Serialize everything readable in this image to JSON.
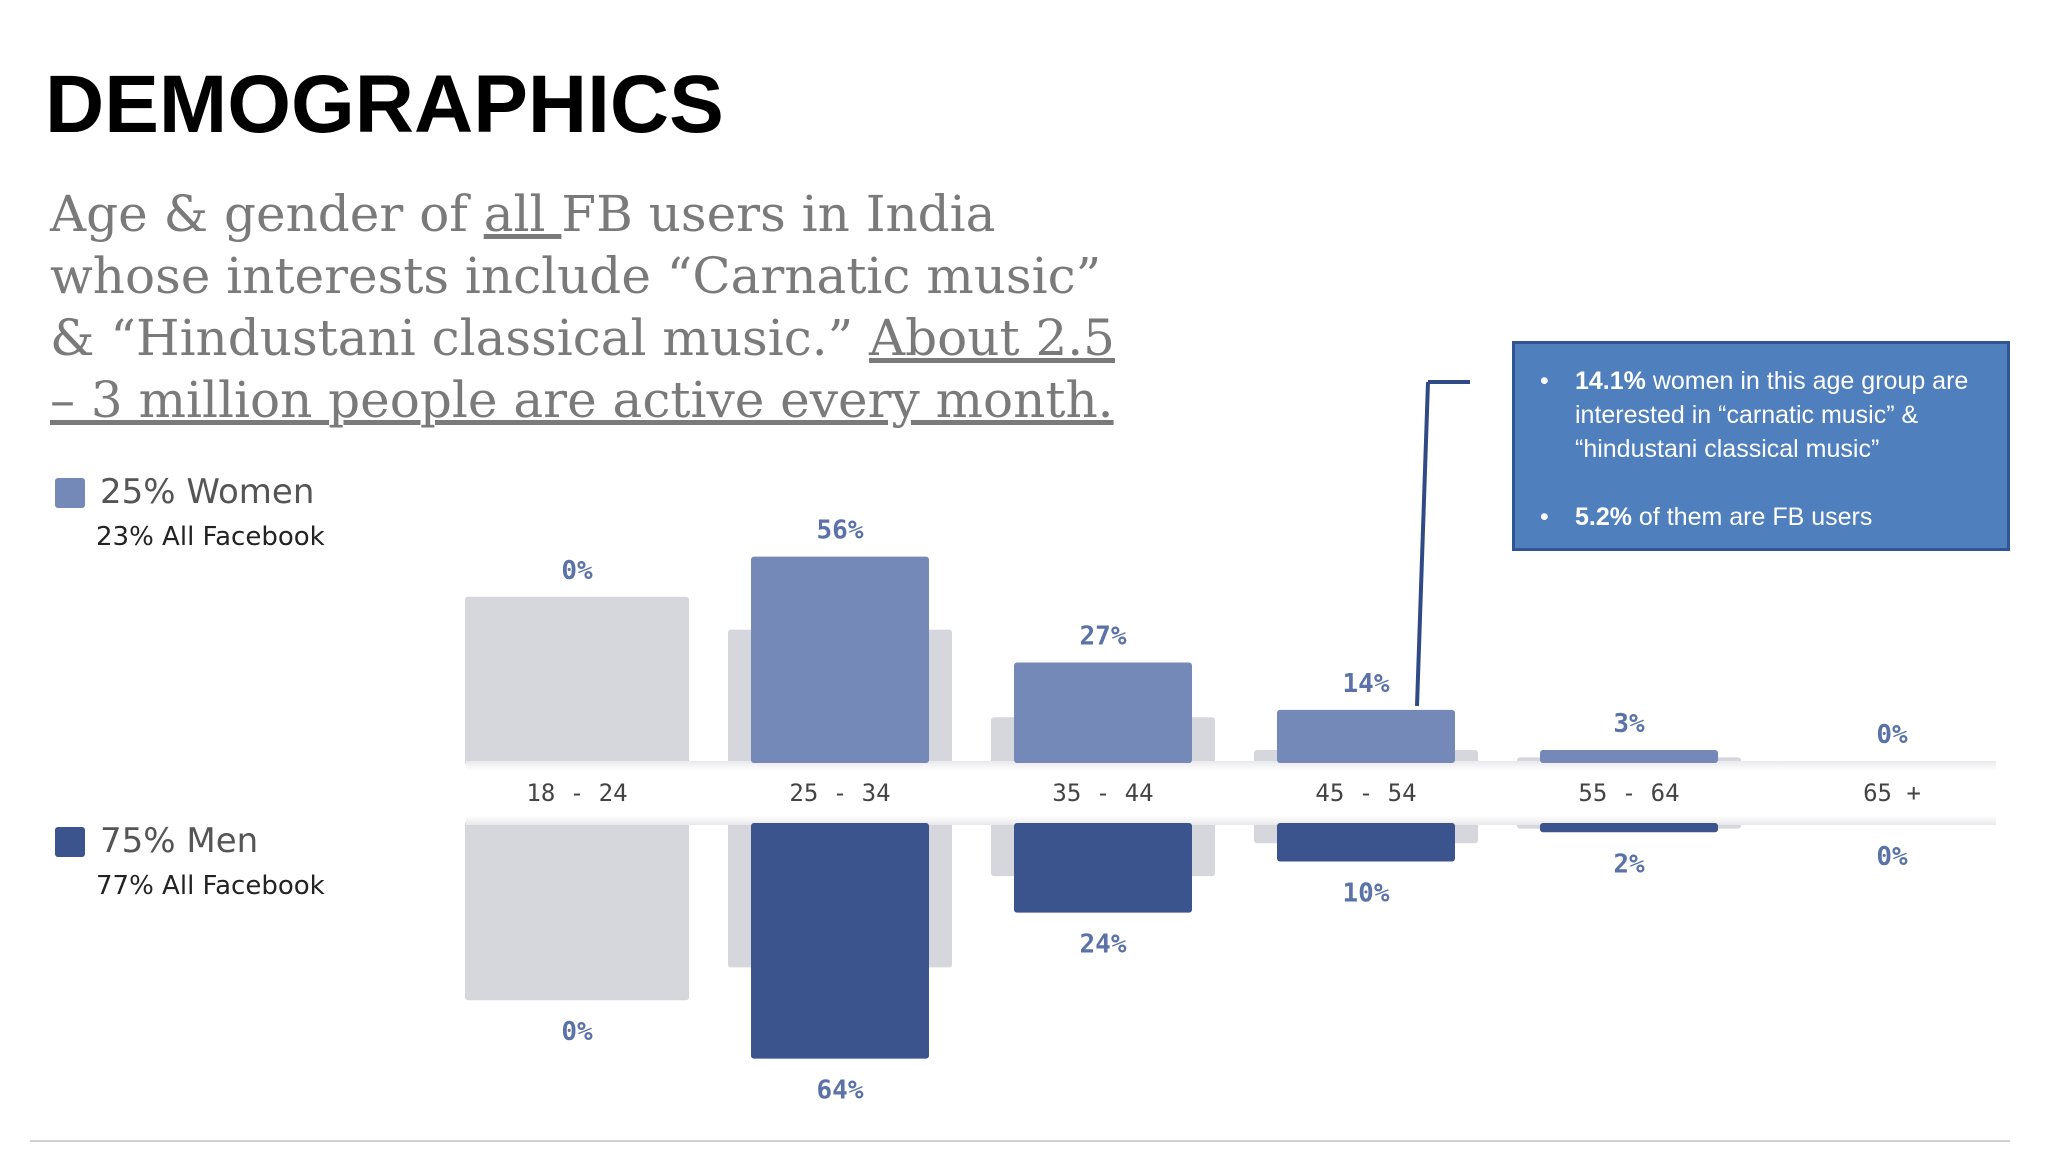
{
  "slide": {
    "title": "DEMOGRAPHICS",
    "subtitle": {
      "p1": "Age & gender of ",
      "p2": "all ",
      "p3": "FB users  in India whose interests include “Carnatic music” & “Hindustani classical music.” ",
      "p4": "About 2.5 – 3 million people are active every month."
    }
  },
  "legend": {
    "women_label": "25% Women",
    "women_sub": "23% All Facebook",
    "men_label": "75% Men",
    "men_sub": "77% All Facebook"
  },
  "callout": {
    "line1_bold": "14.1%",
    "line1_rest": " women in this age group are interested in “carnatic music” & “hindustani classical music”",
    "line2_bold": "5.2%",
    "line2_rest": " of them are FB users",
    "bullet": "•"
  },
  "colors": {
    "women": "#7489b8",
    "men": "#3b548d",
    "all_facebook": "#d5d7dc",
    "label": "#5a72a8"
  },
  "chart_data": {
    "type": "bar",
    "title": "Age & gender of FB users in India",
    "categories": [
      "18 - 24",
      "25 - 34",
      "35 - 44",
      "45 - 54",
      "55 - 64",
      "65 +"
    ],
    "series": [
      {
        "name": "Women",
        "values": [
          0,
          56,
          27,
          14,
          3,
          0
        ],
        "labels": [
          "0%",
          "56%",
          "27%",
          "14%",
          "3%",
          "0%"
        ]
      },
      {
        "name": "Men",
        "values": [
          0,
          64,
          24,
          10,
          2,
          0
        ],
        "labels": [
          "0%",
          "64%",
          "24%",
          "10%",
          "2%",
          "0%"
        ]
      },
      {
        "name": "All Facebook Women",
        "values": [
          45,
          36,
          12,
          3,
          1,
          0
        ]
      },
      {
        "name": "All Facebook Men",
        "values": [
          48,
          39,
          14,
          5,
          1,
          0
        ]
      }
    ],
    "ylim": [
      0,
      70
    ],
    "legend": "left"
  }
}
